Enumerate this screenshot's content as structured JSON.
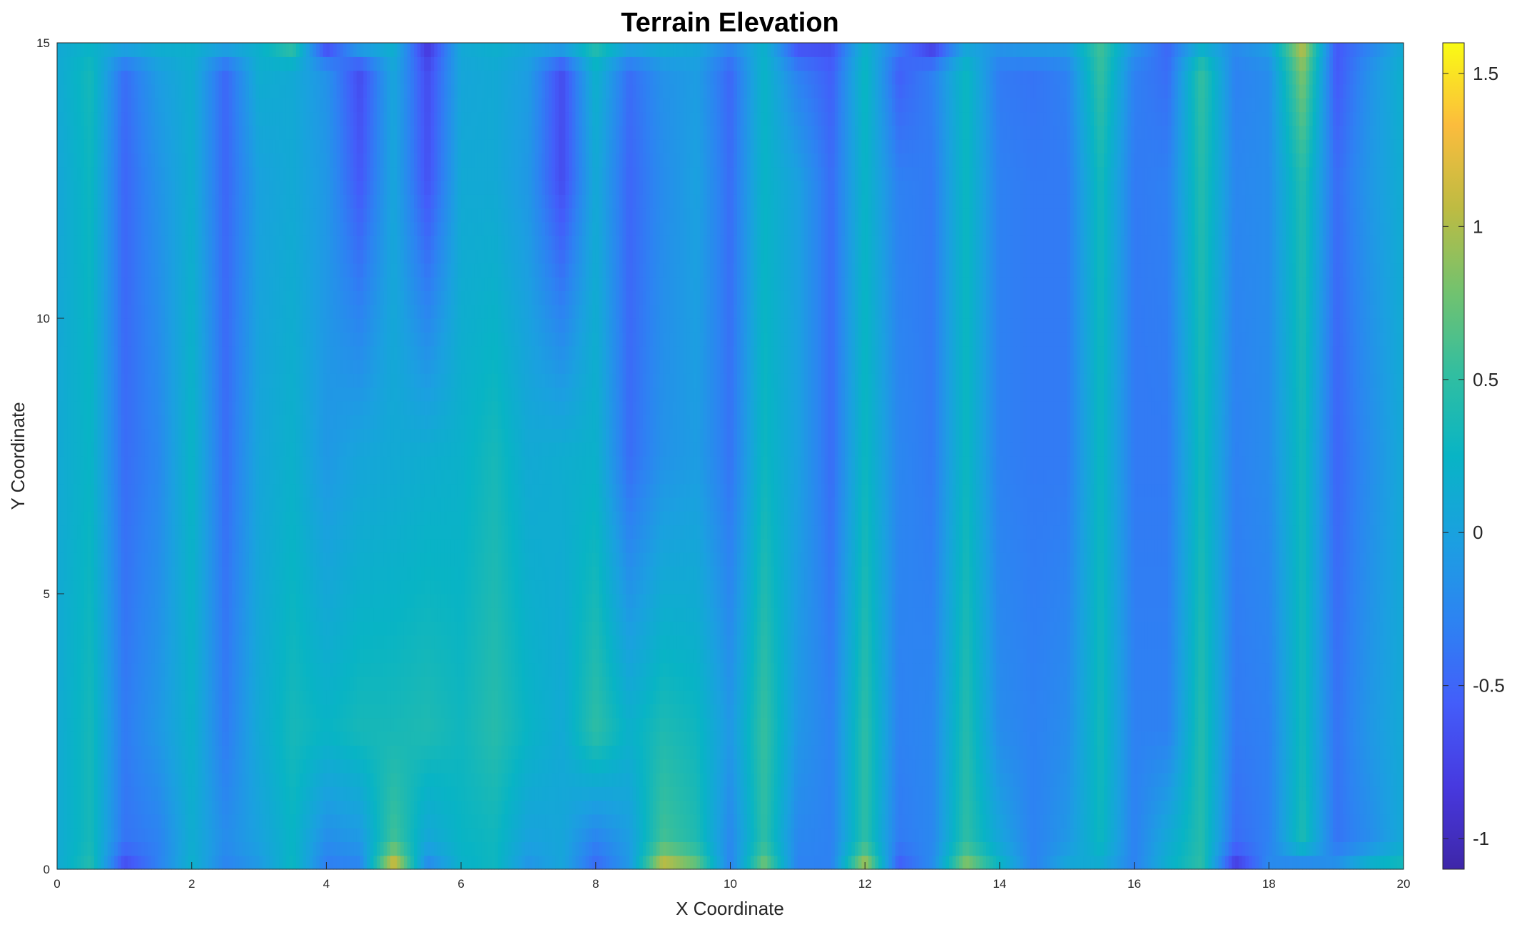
{
  "chart_data": {
    "type": "heatmap",
    "title": "Terrain Elevation",
    "xlabel": "X Coordinate",
    "ylabel": "Y Coordinate",
    "xlim": [
      0,
      20
    ],
    "ylim": [
      0,
      15
    ],
    "xticks": [
      "0",
      "2",
      "4",
      "6",
      "8",
      "10",
      "12",
      "14",
      "16",
      "18",
      "20"
    ],
    "yticks": [
      "0",
      "5",
      "10",
      "15"
    ],
    "colorbar": {
      "range": [
        -1.1,
        1.6
      ],
      "ticks": [
        "-1",
        "-0.5",
        "0",
        "0.5",
        "1",
        "1.5"
      ],
      "colormap": "parula"
    },
    "x": [
      0,
      0.5,
      1.0,
      1.5,
      2.0,
      2.5,
      3.0,
      3.5,
      4.0,
      4.5,
      5.0,
      5.5,
      6.0,
      6.5,
      7.0,
      7.5,
      8.0,
      8.5,
      9.0,
      9.5,
      10.0,
      10.5,
      11.0,
      11.5,
      12.0,
      12.5,
      13.0,
      13.5,
      14.0,
      14.5,
      15.0,
      15.5,
      16.0,
      16.5,
      17.0,
      17.5,
      18.0,
      18.5,
      19.0,
      19.5,
      20.0
    ],
    "y": [
      0,
      0.5,
      2.5,
      7.5,
      12.5,
      14.5,
      15
    ],
    "z": [
      [
        0.1,
        0.45,
        -0.75,
        -0.3,
        0.2,
        -0.3,
        -0.1,
        0.3,
        -0.35,
        -0.3,
        1.3,
        -0.3,
        0.2,
        0.3,
        -0.15,
        0.05,
        -0.5,
        -0.1,
        1.2,
        0.8,
        -0.3,
        0.85,
        -0.3,
        -0.3,
        1.1,
        -0.6,
        -0.2,
        0.95,
        0.3,
        -0.3,
        0.1,
        0.1,
        -0.3,
        0.2,
        0.5,
        -0.9,
        -0.2,
        -0.4,
        -0.1,
        0.3,
        0.4
      ],
      [
        0.1,
        0.35,
        -0.4,
        -0.3,
        0.15,
        -0.2,
        0.0,
        0.25,
        -0.2,
        -0.1,
        0.6,
        0.05,
        0.25,
        0.3,
        0.0,
        0.05,
        -0.3,
        -0.05,
        0.6,
        0.4,
        -0.25,
        0.5,
        -0.25,
        -0.3,
        0.5,
        -0.35,
        -0.25,
        0.5,
        0.05,
        -0.3,
        -0.1,
        0.3,
        -0.3,
        0.1,
        0.45,
        -0.45,
        -0.3,
        0.4,
        -0.4,
        -0.2,
        0.1
      ],
      [
        0.1,
        0.35,
        -0.35,
        -0.1,
        0.2,
        -0.35,
        0.1,
        0.35,
        0.25,
        0.35,
        0.35,
        0.4,
        0.3,
        0.45,
        0.25,
        0.1,
        0.5,
        0.2,
        0.4,
        0.3,
        -0.1,
        0.55,
        -0.1,
        -0.3,
        0.5,
        -0.3,
        -0.25,
        0.45,
        -0.2,
        -0.3,
        -0.2,
        0.35,
        -0.3,
        -0.3,
        0.45,
        -0.35,
        -0.3,
        0.35,
        -0.4,
        -0.1,
        0.1
      ],
      [
        0.1,
        0.25,
        -0.45,
        -0.25,
        0.25,
        -0.45,
        0.05,
        0.2,
        -0.1,
        0.05,
        0.1,
        0.15,
        0.2,
        0.35,
        0.1,
        0.15,
        0.2,
        -0.45,
        -0.15,
        -0.05,
        -0.4,
        0.3,
        0.0,
        -0.45,
        0.3,
        -0.25,
        -0.35,
        0.3,
        -0.3,
        -0.35,
        -0.35,
        0.3,
        -0.35,
        -0.35,
        0.35,
        -0.3,
        -0.2,
        0.35,
        -0.5,
        -0.2,
        0.1
      ],
      [
        0.05,
        0.3,
        -0.5,
        -0.15,
        0.15,
        -0.5,
        0.0,
        0.1,
        -0.1,
        -0.6,
        0.05,
        -0.65,
        0.1,
        0.1,
        -0.1,
        -0.7,
        0.1,
        -0.5,
        -0.2,
        0.0,
        -0.45,
        0.25,
        0.0,
        -0.45,
        0.25,
        -0.3,
        -0.35,
        0.3,
        -0.3,
        -0.35,
        -0.35,
        0.35,
        -0.35,
        -0.3,
        0.45,
        -0.25,
        -0.2,
        0.45,
        -0.45,
        -0.1,
        0.15
      ],
      [
        0.1,
        0.35,
        -0.45,
        -0.05,
        0.15,
        -0.5,
        0.15,
        0.1,
        -0.15,
        -0.7,
        0.05,
        -0.7,
        0.05,
        0.1,
        -0.05,
        -0.7,
        0.2,
        -0.45,
        -0.15,
        -0.05,
        -0.5,
        0.25,
        -0.3,
        -0.55,
        0.3,
        -0.55,
        -0.3,
        0.3,
        -0.35,
        -0.4,
        -0.3,
        0.55,
        -0.3,
        -0.45,
        0.55,
        -0.3,
        -0.2,
        0.85,
        -0.6,
        -0.15,
        0.2
      ],
      [
        0.1,
        0.2,
        0.1,
        0.2,
        0.2,
        0.1,
        0.2,
        0.6,
        -0.8,
        0.1,
        0.2,
        -0.9,
        0.1,
        0.2,
        0.1,
        0.1,
        0.5,
        0.1,
        0.2,
        0.1,
        -0.2,
        0.2,
        -0.7,
        -0.7,
        0.2,
        -0.3,
        -0.9,
        0.0,
        -0.1,
        0.0,
        0.0,
        0.6,
        -0.1,
        -0.5,
        0.1,
        -0.2,
        0.0,
        1.1,
        -0.6,
        -0.3,
        0.1
      ]
    ]
  }
}
